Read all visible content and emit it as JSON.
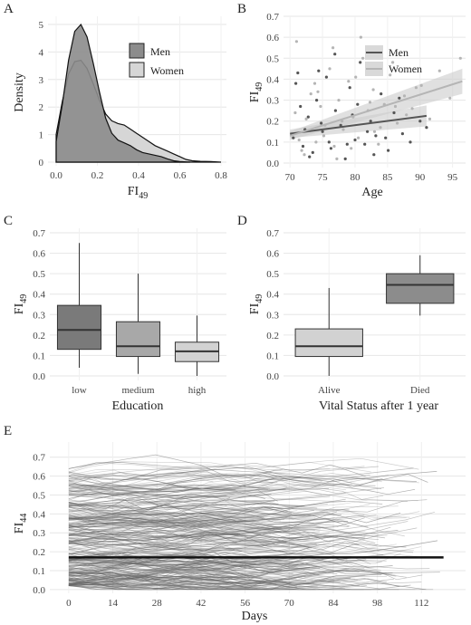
{
  "chart_data": [
    {
      "panel": "A",
      "type": "area",
      "xlabel": "FI49",
      "ylabel": "Density",
      "xlim": [
        0.0,
        0.8
      ],
      "ylim": [
        0,
        5
      ],
      "xticks": [
        "0.0",
        "0.2",
        "0.4",
        "0.6",
        "0.8"
      ],
      "yticks": [
        "0",
        "1",
        "2",
        "3",
        "4",
        "5"
      ],
      "legend": {
        "position": "top-right",
        "entries": [
          "Men",
          "Women"
        ]
      },
      "grid": true,
      "series": [
        {
          "name": "Men",
          "color": "#8c8c8c",
          "x": [
            0.0,
            0.03,
            0.06,
            0.09,
            0.12,
            0.15,
            0.18,
            0.21,
            0.24,
            0.27,
            0.3,
            0.33,
            0.36,
            0.39,
            0.42,
            0.45,
            0.48,
            0.51,
            0.54,
            0.57,
            0.6,
            0.65
          ],
          "y": [
            0.75,
            2.1,
            3.7,
            4.75,
            5.0,
            4.55,
            3.6,
            2.55,
            1.6,
            1.05,
            0.8,
            0.7,
            0.6,
            0.45,
            0.35,
            0.3,
            0.25,
            0.2,
            0.12,
            0.05,
            0.02,
            0.0
          ]
        },
        {
          "name": "Women",
          "color": "#d6d6d6",
          "x": [
            0.0,
            0.03,
            0.06,
            0.09,
            0.12,
            0.15,
            0.18,
            0.21,
            0.24,
            0.27,
            0.3,
            0.33,
            0.36,
            0.39,
            0.42,
            0.45,
            0.48,
            0.51,
            0.54,
            0.57,
            0.6,
            0.63,
            0.66,
            0.7,
            0.75,
            0.8
          ],
          "y": [
            1.0,
            2.2,
            3.2,
            3.65,
            3.7,
            3.4,
            2.85,
            2.25,
            1.75,
            1.5,
            1.4,
            1.35,
            1.2,
            1.05,
            0.9,
            0.75,
            0.6,
            0.5,
            0.4,
            0.3,
            0.2,
            0.1,
            0.05,
            0.03,
            0.02,
            0.0
          ]
        }
      ]
    },
    {
      "panel": "B",
      "type": "scatter",
      "xlabel": "Age",
      "ylabel": "FI49",
      "xlim": [
        69,
        97
      ],
      "ylim": [
        0,
        0.7
      ],
      "xticks": [
        "70",
        "75",
        "80",
        "85",
        "90",
        "95"
      ],
      "yticks": [
        "0.0",
        "0.1",
        "0.2",
        "0.3",
        "0.4",
        "0.5",
        "0.6",
        "0.7"
      ],
      "legend": {
        "position": "top-right",
        "entries": [
          "Men",
          "Women"
        ]
      },
      "grid": true,
      "series": [
        {
          "name": "Men",
          "color": "#555555",
          "trend": {
            "x": [
              70,
              91
            ],
            "y": [
              0.14,
              0.225
            ]
          },
          "ci_halfwidth": [
            0.02,
            0.05
          ],
          "points": {
            "x": [
              70.5,
              71.2,
              72.0,
              72.8,
              73.5,
              74.1,
              75.0,
              75.6,
              76.3,
              77.0,
              77.8,
              78.5,
              79.2,
              80.0,
              80.8,
              81.5,
              82.4,
              83.2,
              84.0,
              85.1,
              86.0,
              87.3,
              88.5,
              90.0,
              91.0,
              71.6,
              73.0,
              74.8,
              76.9,
              78.8,
              80.4,
              82.9,
              84.7,
              70.9,
              72.3,
              74.4,
              76.0,
              79.6,
              81.9,
              86.8
            ],
            "y": [
              0.12,
              0.43,
              0.08,
              0.22,
              0.05,
              0.3,
              0.15,
              0.41,
              0.07,
              0.25,
              0.18,
              0.02,
              0.36,
              0.11,
              0.48,
              0.09,
              0.2,
              0.13,
              0.33,
              0.06,
              0.24,
              0.14,
              0.1,
              0.2,
              0.17,
              0.27,
              0.03,
              0.19,
              0.52,
              0.09,
              0.28,
              0.04,
              0.12,
              0.38,
              0.16,
              0.44,
              0.1,
              0.23,
              0.15,
              0.31
            ]
          }
        },
        {
          "name": "Women",
          "color": "#b5b5b5",
          "trend": {
            "x": [
              70,
              96.5
            ],
            "y": [
              0.13,
              0.39
            ]
          },
          "ci_halfwidth": [
            0.02,
            0.06
          ],
          "points": {
            "x": [
              70.3,
              71.0,
              71.8,
              72.5,
              73.2,
              74.0,
              74.7,
              75.4,
              76.1,
              76.8,
              77.5,
              78.2,
              79.0,
              79.7,
              80.5,
              81.2,
              82.0,
              82.8,
              83.6,
              84.5,
              85.4,
              86.5,
              87.6,
              88.8,
              90.2,
              91.5,
              93.0,
              94.6,
              96.2,
              70.8,
              72.2,
              73.8,
              75.2,
              76.6,
              78.0,
              79.4,
              80.9,
              82.3,
              83.9,
              85.8,
              87.9,
              89.4,
              71.4,
              74.3,
              77.2,
              80.1,
              83.0,
              86.2
            ],
            "y": [
              0.14,
              0.58,
              0.06,
              0.21,
              0.33,
              0.1,
              0.27,
              0.18,
              0.45,
              0.08,
              0.3,
              0.16,
              0.39,
              0.22,
              0.12,
              0.5,
              0.25,
              0.35,
              0.09,
              0.28,
              0.42,
              0.19,
              0.32,
              0.26,
              0.37,
              0.21,
              0.44,
              0.31,
              0.5,
              0.24,
              0.04,
              0.38,
              0.13,
              0.55,
              0.2,
              0.07,
              0.6,
              0.29,
              0.17,
              0.48,
              0.23,
              0.36,
              0.11,
              0.34,
              0.02,
              0.41,
              0.15,
              0.27
            ]
          }
        }
      ]
    },
    {
      "panel": "C",
      "type": "box",
      "xlabel": "Education",
      "ylabel": "FI49",
      "ylim": [
        0,
        0.7
      ],
      "yticks": [
        "0.0",
        "0.1",
        "0.2",
        "0.3",
        "0.4",
        "0.5",
        "0.6",
        "0.7"
      ],
      "categories": [
        "low",
        "medium",
        "high"
      ],
      "colors": [
        "#7a7a7a",
        "#a8a8a8",
        "#d2d2d2"
      ],
      "boxes": [
        {
          "min": 0.04,
          "q1": 0.13,
          "median": 0.225,
          "q3": 0.345,
          "max": 0.65
        },
        {
          "min": 0.01,
          "q1": 0.095,
          "median": 0.145,
          "q3": 0.265,
          "max": 0.5
        },
        {
          "min": 0.0,
          "q1": 0.07,
          "median": 0.12,
          "q3": 0.165,
          "max": 0.295
        }
      ]
    },
    {
      "panel": "D",
      "type": "box",
      "xlabel": "Vital Status after 1 year",
      "ylabel": "FI49",
      "ylim": [
        0,
        0.7
      ],
      "yticks": [
        "0.0",
        "0.1",
        "0.2",
        "0.3",
        "0.4",
        "0.5",
        "0.6",
        "0.7"
      ],
      "categories": [
        "Alive",
        "Died"
      ],
      "colors": [
        "#d2d2d2",
        "#8c8c8c"
      ],
      "boxes": [
        {
          "min": 0.0,
          "q1": 0.095,
          "median": 0.145,
          "q3": 0.23,
          "max": 0.43
        },
        {
          "min": 0.295,
          "q1": 0.355,
          "median": 0.445,
          "q3": 0.5,
          "max": 0.59
        }
      ]
    },
    {
      "panel": "E",
      "type": "line",
      "xlabel": "Days",
      "ylabel": "FI44",
      "xlim": [
        -6,
        126
      ],
      "ylim": [
        -0.02,
        0.78
      ],
      "xticks": [
        "0",
        "14",
        "28",
        "42",
        "56",
        "70",
        "84",
        "98",
        "112"
      ],
      "yticks": [
        "0.0",
        "0.1",
        "0.2",
        "0.3",
        "0.4",
        "0.5",
        "0.6",
        "0.7"
      ],
      "mean_line": {
        "x": [
          0,
          119
        ],
        "y": [
          0.17,
          0.17
        ],
        "color": "#111111"
      },
      "trajectories": {
        "count": 300,
        "color": "#666666"
      }
    }
  ]
}
